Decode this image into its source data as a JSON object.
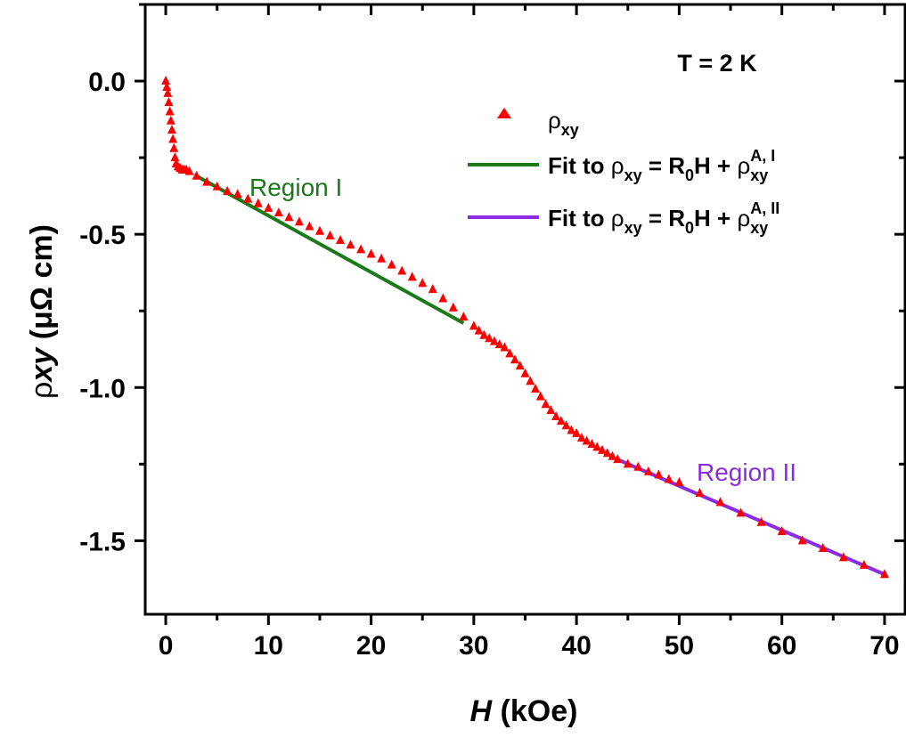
{
  "chart_data": {
    "type": "scatter",
    "xlabel": {
      "symbol": "H",
      "unit": " (kOe)"
    },
    "ylabel": {
      "symbol": "ρ",
      "subscript": "xy",
      "unit": " (μΩ cm)"
    },
    "xlim": [
      -2,
      72
    ],
    "ylim": [
      -1.74,
      0.25
    ],
    "xticks": [
      0,
      10,
      20,
      30,
      40,
      50,
      60,
      70
    ],
    "yticks": [
      0.0,
      -0.5,
      -1.0,
      -1.5
    ],
    "xtick_labels": [
      "0",
      "10",
      "20",
      "30",
      "40",
      "50",
      "60",
      "70"
    ],
    "ytick_labels": [
      "0.0",
      "-0.5",
      "-1.0",
      "-1.5"
    ],
    "grid": false,
    "legend_position": "top-right",
    "annotations": {
      "temperature": "T = 2 K",
      "region1": "Region I",
      "region2": "Region II"
    },
    "colors": {
      "data": "#ff0000",
      "fit1": "#1a7a1a",
      "fit2": "#8b2be2",
      "region1_text": "#1a7a1a",
      "region2_text": "#8b2be2"
    },
    "series": [
      {
        "name": "ρxy",
        "legend": {
          "main": "ρ",
          "sub": "xy"
        },
        "marker": "triangle",
        "x": [
          0,
          0.1,
          0.2,
          0.3,
          0.4,
          0.5,
          0.6,
          0.7,
          0.8,
          0.9,
          1.0,
          1.2,
          1.4,
          1.6,
          1.8,
          2.0,
          2.3,
          3,
          4,
          5,
          6,
          7,
          8,
          9,
          10,
          11,
          12,
          13,
          14,
          15,
          16,
          17,
          18,
          19,
          20,
          21,
          22,
          23,
          24,
          25,
          26,
          27,
          28,
          29,
          30,
          30.5,
          31,
          31.5,
          32,
          32.5,
          33,
          33.5,
          34,
          34.5,
          35,
          35.5,
          36,
          36.5,
          37,
          37.5,
          38,
          38.5,
          39,
          39.5,
          40,
          40.5,
          41,
          41.5,
          42,
          42.5,
          43,
          43.5,
          44,
          45,
          46,
          47,
          48,
          49,
          50,
          52,
          54,
          56,
          58,
          60,
          62,
          64,
          66,
          68,
          70
        ],
        "y": [
          0.0,
          -0.02,
          -0.04,
          -0.07,
          -0.1,
          -0.13,
          -0.16,
          -0.19,
          -0.22,
          -0.25,
          -0.27,
          -0.28,
          -0.285,
          -0.29,
          -0.29,
          -0.29,
          -0.295,
          -0.31,
          -0.33,
          -0.345,
          -0.36,
          -0.37,
          -0.385,
          -0.4,
          -0.415,
          -0.43,
          -0.445,
          -0.46,
          -0.475,
          -0.49,
          -0.505,
          -0.52,
          -0.535,
          -0.55,
          -0.565,
          -0.58,
          -0.6,
          -0.62,
          -0.64,
          -0.66,
          -0.68,
          -0.71,
          -0.74,
          -0.77,
          -0.8,
          -0.815,
          -0.83,
          -0.84,
          -0.85,
          -0.86,
          -0.87,
          -0.89,
          -0.91,
          -0.93,
          -0.955,
          -0.98,
          -1.005,
          -1.03,
          -1.055,
          -1.075,
          -1.095,
          -1.11,
          -1.125,
          -1.14,
          -1.15,
          -1.165,
          -1.175,
          -1.185,
          -1.195,
          -1.205,
          -1.215,
          -1.225,
          -1.235,
          -1.25,
          -1.26,
          -1.275,
          -1.285,
          -1.3,
          -1.31,
          -1.345,
          -1.375,
          -1.41,
          -1.44,
          -1.47,
          -1.5,
          -1.525,
          -1.555,
          -1.58,
          -1.61
        ]
      },
      {
        "name": "Fit Region I",
        "legend": {
          "prefix": "Fit to ",
          "rho": "ρ",
          "sub": "xy",
          "mid": " = R",
          "r0sub": "0",
          "tail": "H + ",
          "rho2": "ρ",
          "sub2": "xy",
          "sup2": "A, I"
        },
        "type": "line",
        "x": [
          3,
          29
        ],
        "y": [
          -0.31,
          -0.79
        ]
      },
      {
        "name": "Fit Region II",
        "legend": {
          "prefix": "Fit to ",
          "rho": "ρ",
          "sub": "xy",
          "mid": " = R",
          "r0sub": "0",
          "tail": "H + ",
          "rho2": "ρ",
          "sub2": "xy",
          "sup2": "A, II"
        },
        "type": "line",
        "x": [
          44,
          70
        ],
        "y": [
          -1.235,
          -1.61
        ]
      }
    ]
  }
}
